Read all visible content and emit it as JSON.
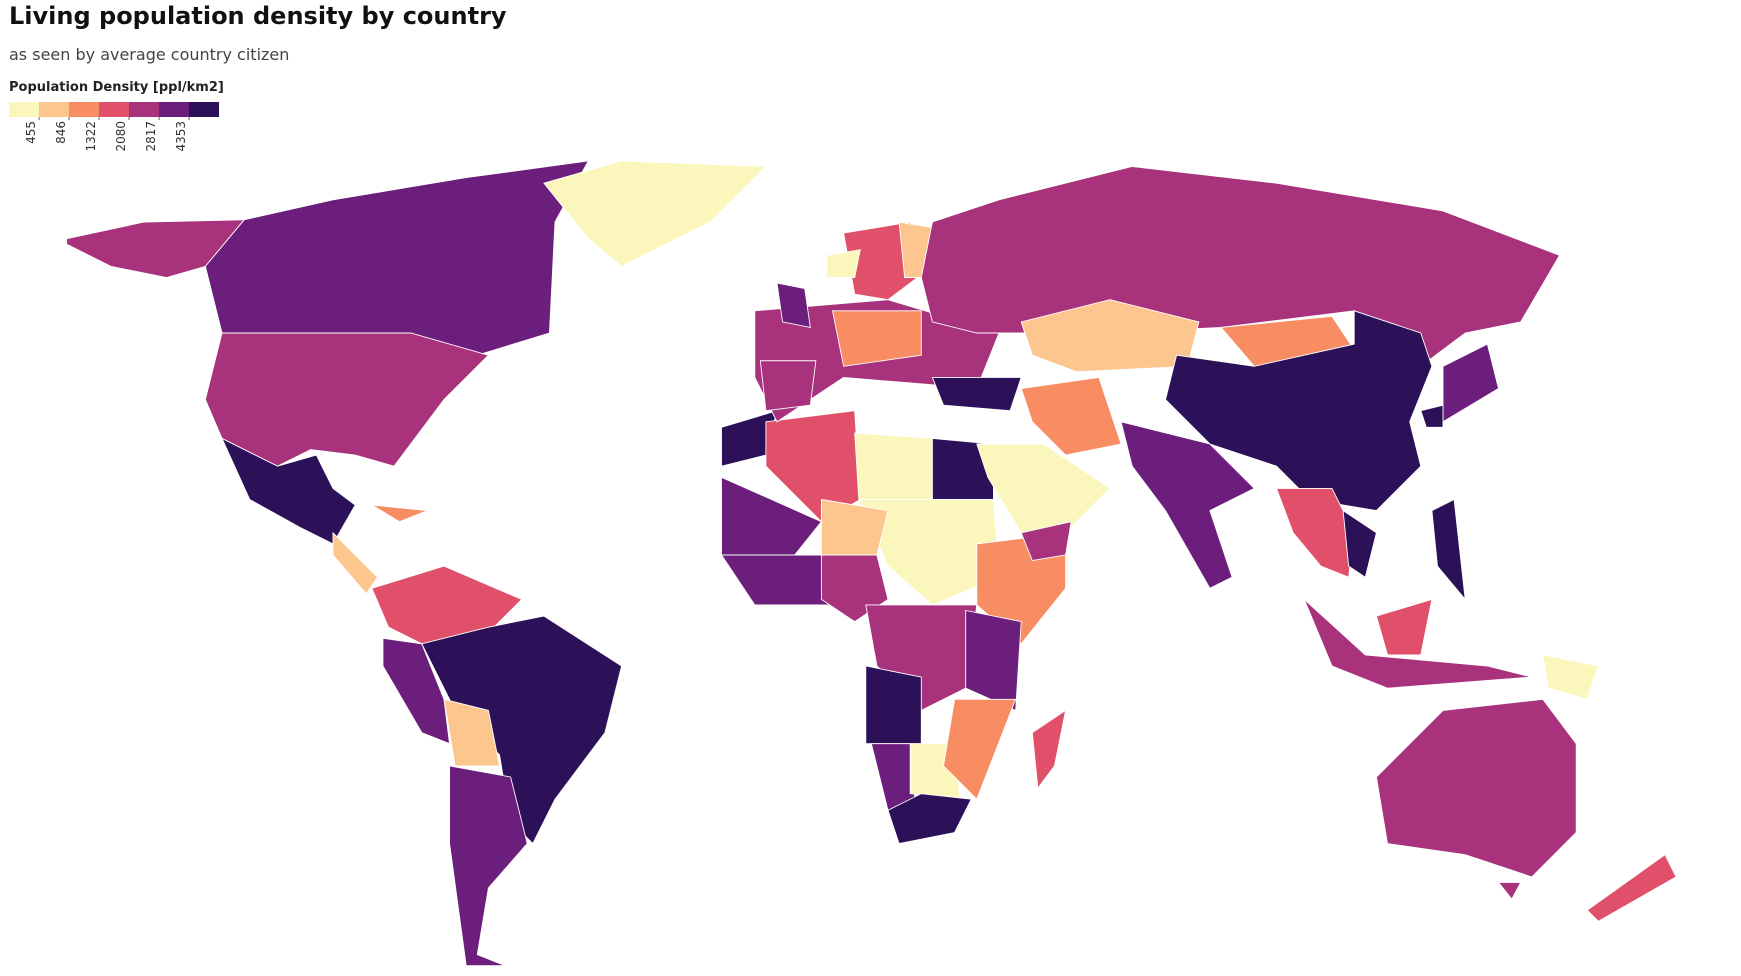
{
  "header": {
    "title": "Living population density by country",
    "subtitle": "as seen by average country citizen"
  },
  "legend": {
    "title": "Population Density [ppl/km2]",
    "ticks": [
      455,
      846,
      1322,
      2080,
      2817,
      4353
    ],
    "colors": [
      "#fbf6bc",
      "#fdc68e",
      "#f88c62",
      "#e0506a",
      "#a8327c",
      "#6b1e7b",
      "#2c1158"
    ]
  }
}
